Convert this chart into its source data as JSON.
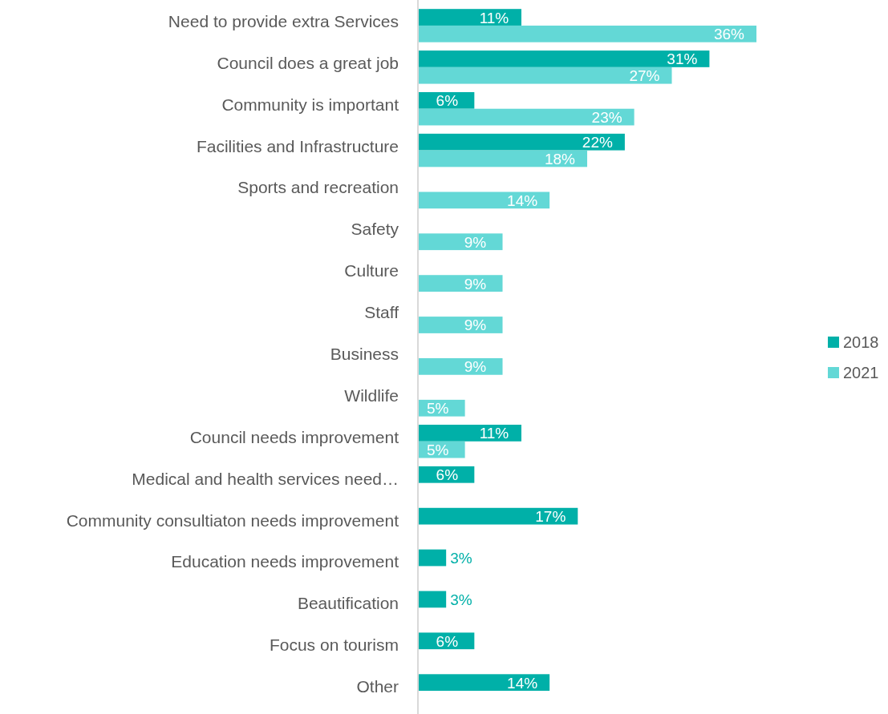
{
  "chart_data": {
    "type": "bar",
    "orientation": "horizontal",
    "legend": "right",
    "categories": [
      "Need to provide extra Services",
      "Council does a great job",
      "Community is important ",
      "Facilities and Infrastructure ",
      "Sports and recreation",
      "Safety",
      "Culture",
      "Staff",
      "Business",
      "Wildlife",
      "Council needs improvement",
      "Medical and health services need…",
      "Community consultiaton needs improvement",
      "Education needs improvement",
      "Beautification ",
      "Focus on tourism",
      "Other"
    ],
    "series": [
      {
        "name": "2018",
        "color": "#00b0a8",
        "values": [
          11,
          31,
          6,
          22,
          null,
          null,
          null,
          null,
          null,
          null,
          11,
          6,
          17,
          3,
          3,
          6,
          14
        ],
        "value_labels": [
          "11%",
          "31%",
          "6%",
          "22%",
          null,
          null,
          null,
          null,
          null,
          null,
          "11%",
          "6%",
          "17%",
          "3%",
          "3%",
          "6%",
          "14%"
        ]
      },
      {
        "name": "2021",
        "color": "#63d8d6",
        "values": [
          36,
          27,
          23,
          18,
          14,
          9,
          9,
          9,
          9,
          5,
          5,
          null,
          null,
          null,
          null,
          null,
          null
        ],
        "value_labels": [
          "36%",
          "27%",
          "23%",
          "18%",
          "14%",
          "9%",
          "9%",
          "9%",
          "9%",
          "5%",
          "5%",
          null,
          null,
          null,
          null,
          null,
          null
        ]
      }
    ]
  }
}
